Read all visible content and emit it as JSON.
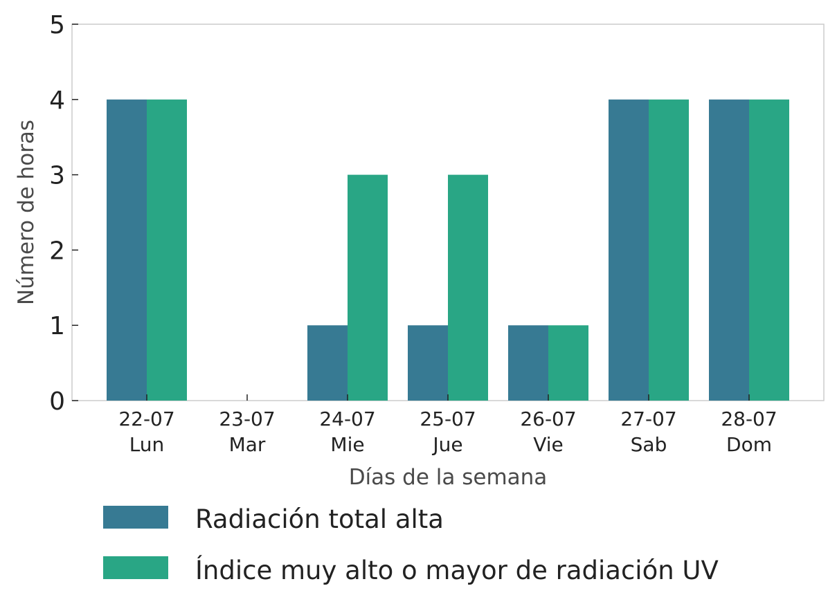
{
  "colors": {
    "series_1": "#377a93",
    "series_2": "#29a685",
    "frame": "#cccccc",
    "text": "#222222",
    "axis_title": "#4a4a4a"
  },
  "chart_data": {
    "type": "bar",
    "categories": [
      {
        "date": "22-07",
        "day": "Lun"
      },
      {
        "date": "23-07",
        "day": "Mar"
      },
      {
        "date": "24-07",
        "day": "Mie"
      },
      {
        "date": "25-07",
        "day": "Jue"
      },
      {
        "date": "26-07",
        "day": "Vie"
      },
      {
        "date": "27-07",
        "day": "Sab"
      },
      {
        "date": "28-07",
        "day": "Dom"
      }
    ],
    "series": [
      {
        "name": "Radiación total alta",
        "values": [
          4,
          0,
          1,
          1,
          1,
          4,
          4
        ]
      },
      {
        "name": "Índice muy alto o mayor de radiación UV",
        "values": [
          4,
          0,
          3,
          3,
          1,
          4,
          4
        ]
      }
    ],
    "xlabel": "Días de la semana",
    "ylabel": "Número de horas",
    "ylim": [
      0,
      5
    ],
    "yticks": [
      "0",
      "1",
      "2",
      "3",
      "4",
      "5"
    ],
    "grid": false,
    "legend_position": "bottom"
  }
}
